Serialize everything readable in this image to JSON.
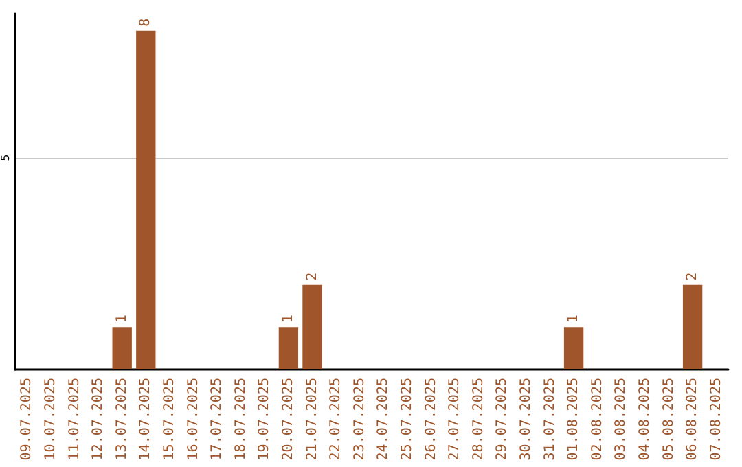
{
  "chart_data": {
    "type": "bar",
    "categories": [
      "09.07.2025",
      "10.07.2025",
      "11.07.2025",
      "12.07.2025",
      "13.07.2025",
      "14.07.2025",
      "15.07.2025",
      "16.07.2025",
      "17.07.2025",
      "18.07.2025",
      "19.07.2025",
      "20.07.2025",
      "21.07.2025",
      "22.07.2025",
      "23.07.2025",
      "24.07.2025",
      "25.07.2025",
      "26.07.2025",
      "27.07.2025",
      "28.07.2025",
      "29.07.2025",
      "30.07.2025",
      "31.07.2025",
      "01.08.2025",
      "02.08.2025",
      "03.08.2025",
      "04.08.2025",
      "05.08.2025",
      "06.08.2025",
      "07.08.2025"
    ],
    "values": [
      0,
      0,
      0,
      0,
      1,
      8,
      0,
      0,
      0,
      0,
      0,
      1,
      2,
      0,
      0,
      0,
      0,
      0,
      0,
      0,
      0,
      0,
      0,
      1,
      0,
      0,
      0,
      0,
      2,
      0
    ],
    "value_labels": [
      null,
      null,
      null,
      null,
      "1",
      "8",
      null,
      null,
      null,
      null,
      null,
      "1",
      "2",
      null,
      null,
      null,
      null,
      null,
      null,
      null,
      null,
      null,
      null,
      "1",
      null,
      null,
      null,
      null,
      "2",
      null
    ],
    "color": "#a0562a",
    "ylim": [
      0,
      8.4
    ],
    "yticks": [
      5
    ],
    "grid": "y"
  }
}
